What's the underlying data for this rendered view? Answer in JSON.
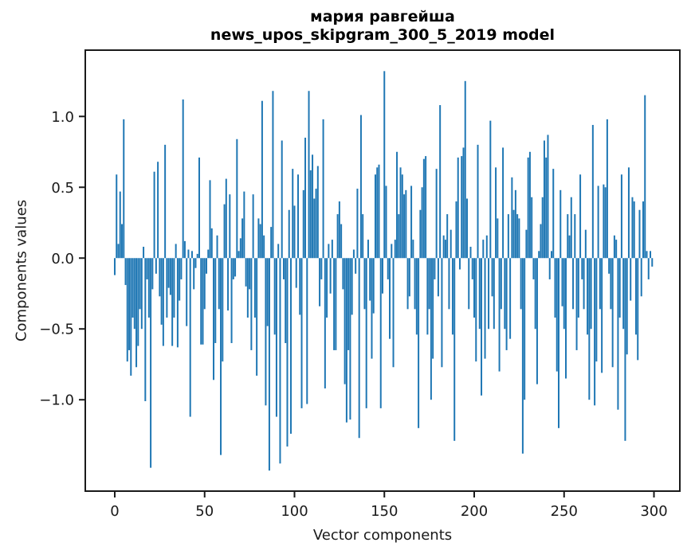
{
  "chart_data": {
    "type": "bar",
    "title": "мария равгейша",
    "subtitle": "news_upos_skipgram_300_5_2019 model",
    "xlabel": "Vector components",
    "ylabel": "Components values",
    "x_ticks": [
      0,
      50,
      100,
      150,
      200,
      250,
      300
    ],
    "y_ticks": [
      -1.0,
      -0.5,
      0.0,
      0.5,
      1.0
    ],
    "xlim": [
      -16.4,
      314.4
    ],
    "ylim": [
      -1.645,
      1.468
    ],
    "n_components": 300,
    "bar_color": "#1f77b4",
    "axis_color": "#1a1a1a",
    "background": "#ffffff",
    "grid": false,
    "values": [
      -0.12,
      0.59,
      0.1,
      0.47,
      0.24,
      0.98,
      -0.19,
      -0.73,
      -0.65,
      -0.83,
      -0.42,
      -0.5,
      -0.77,
      -0.62,
      -0.36,
      -0.5,
      0.08,
      -1.01,
      -0.15,
      -0.42,
      -1.48,
      -0.22,
      0.61,
      -0.11,
      0.68,
      -0.27,
      -0.47,
      -0.62,
      0.8,
      -0.42,
      -0.21,
      -0.26,
      -0.62,
      -0.42,
      0.1,
      -0.63,
      -0.3,
      -0.15,
      1.12,
      0.12,
      -0.48,
      0.06,
      -1.12,
      0.05,
      -0.22,
      -0.07,
      0.03,
      0.71,
      -0.61,
      -0.61,
      -0.36,
      -0.11,
      0.06,
      0.55,
      0.21,
      -0.86,
      -0.6,
      0.16,
      -0.36,
      -1.39,
      -0.73,
      0.38,
      0.56,
      -0.37,
      0.45,
      -0.6,
      -0.15,
      -0.13,
      0.84,
      0.05,
      0.14,
      0.28,
      0.47,
      -0.2,
      -0.42,
      -0.22,
      -0.65,
      0.45,
      -0.42,
      -0.83,
      0.28,
      0.24,
      1.11,
      0.16,
      -1.04,
      -0.48,
      -1.5,
      0.22,
      1.18,
      -0.54,
      -1.12,
      0.1,
      -1.45,
      0.83,
      -0.15,
      -0.6,
      -1.33,
      0.34,
      -1.24,
      0.63,
      0.37,
      -0.21,
      0.59,
      -0.4,
      -1.06,
      0.48,
      0.85,
      -1.03,
      1.18,
      0.62,
      0.73,
      0.42,
      0.49,
      0.65,
      -0.34,
      -0.15,
      0.98,
      -0.92,
      -0.42,
      0.1,
      -0.25,
      0.13,
      -0.65,
      -0.65,
      0.31,
      0.4,
      0.24,
      -0.22,
      -0.89,
      -1.16,
      -0.65,
      -1.14,
      -0.4,
      0.06,
      -0.11,
      0.49,
      -1.27,
      1.01,
      0.31,
      -0.36,
      -1.06,
      0.13,
      -0.3,
      -0.71,
      -0.39,
      0.59,
      0.64,
      0.66,
      -1.06,
      -0.25,
      1.32,
      0.51,
      -0.15,
      -0.57,
      0.1,
      -0.77,
      0.13,
      0.75,
      0.31,
      0.64,
      0.59,
      0.45,
      0.48,
      -0.36,
      -0.27,
      0.51,
      0.13,
      -0.36,
      -0.54,
      -1.2,
      0.34,
      0.5,
      0.7,
      0.72,
      -0.54,
      -0.36,
      -1.0,
      -0.71,
      -0.15,
      0.63,
      -0.27,
      1.08,
      -0.77,
      0.16,
      0.13,
      0.31,
      -0.36,
      0.2,
      -0.54,
      -1.29,
      0.4,
      0.71,
      -0.08,
      0.72,
      0.78,
      1.25,
      0.42,
      -0.36,
      0.08,
      -0.15,
      -0.42,
      -0.73,
      0.8,
      -0.5,
      -0.97,
      0.13,
      -0.71,
      0.16,
      -0.5,
      0.97,
      -0.27,
      -0.5,
      0.64,
      0.28,
      -0.8,
      -0.36,
      0.78,
      -0.5,
      -0.65,
      0.31,
      -0.57,
      0.57,
      0.34,
      0.48,
      0.31,
      0.28,
      -0.36,
      -1.38,
      -1.0,
      0.2,
      0.71,
      0.75,
      0.43,
      -0.15,
      -0.5,
      -0.89,
      0.05,
      0.24,
      0.43,
      0.83,
      0.71,
      0.87,
      -0.15,
      0.05,
      0.63,
      -0.42,
      -0.8,
      -1.2,
      0.48,
      -0.34,
      -0.5,
      -0.85,
      0.31,
      0.16,
      0.43,
      -0.36,
      0.31,
      -0.65,
      -0.42,
      0.59,
      -0.15,
      -0.36,
      0.2,
      -0.54,
      -1.0,
      -0.5,
      0.94,
      -1.04,
      -0.73,
      0.51,
      -0.36,
      -0.81,
      0.52,
      0.5,
      0.98,
      -0.11,
      -0.36,
      -0.77,
      0.16,
      0.13,
      -1.07,
      -0.42,
      0.59,
      -0.5,
      -1.29,
      -0.68,
      0.64,
      -0.3,
      0.43,
      0.4,
      -0.54,
      -0.72,
      0.34,
      -0.27,
      0.4,
      1.15,
      0.05,
      -0.15,
      0.05,
      -0.06
    ]
  }
}
